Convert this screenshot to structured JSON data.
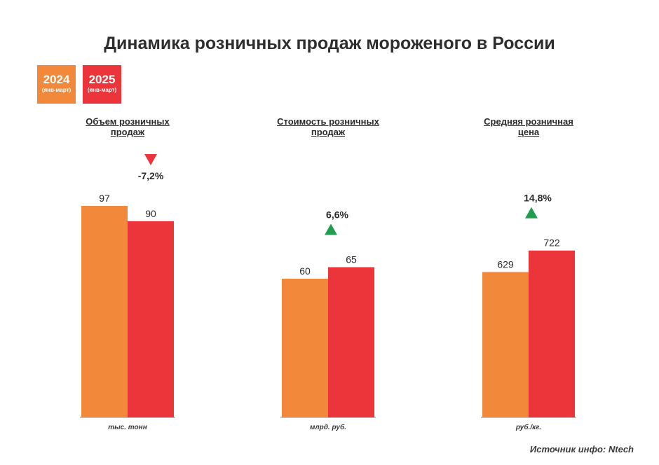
{
  "title": "Динамика розничных продаж мороженого в России",
  "legend": [
    {
      "year": "2024",
      "period": "(янв-март)",
      "color": "#F2893A"
    },
    {
      "year": "2025",
      "period": "(янв-март)",
      "color": "#EC353B"
    }
  ],
  "source": "Источник инфо: Ntech",
  "colors": {
    "up": "#1E9E4E",
    "down": "#EC353B"
  },
  "chart_data": [
    {
      "type": "bar",
      "title_line1": "Объем розничных",
      "title_line2": "продаж",
      "unit": "тыс. тонн",
      "categories": [
        "2024",
        "2025"
      ],
      "values": [
        97,
        90
      ],
      "value_labels": [
        "97",
        "90"
      ],
      "change": "-7,2%",
      "direction": "down",
      "ylim": [
        0,
        106
      ]
    },
    {
      "type": "bar",
      "title_line1": "Стоимость розничных",
      "title_line2": "продаж",
      "unit": "млрд. руб.",
      "categories": [
        "2024",
        "2025"
      ],
      "values": [
        60,
        65
      ],
      "value_labels": [
        "60",
        "65"
      ],
      "change": "6,6%",
      "direction": "up",
      "ylim": [
        0,
        100
      ]
    },
    {
      "type": "bar",
      "title_line1": "Средняя розничная",
      "title_line2": "цена",
      "unit": "руб./кг.",
      "categories": [
        "2024",
        "2025"
      ],
      "values": [
        629,
        722
      ],
      "value_labels": [
        "629",
        "722"
      ],
      "change": "14,8%",
      "direction": "up",
      "ylim": [
        0,
        1000
      ]
    }
  ]
}
